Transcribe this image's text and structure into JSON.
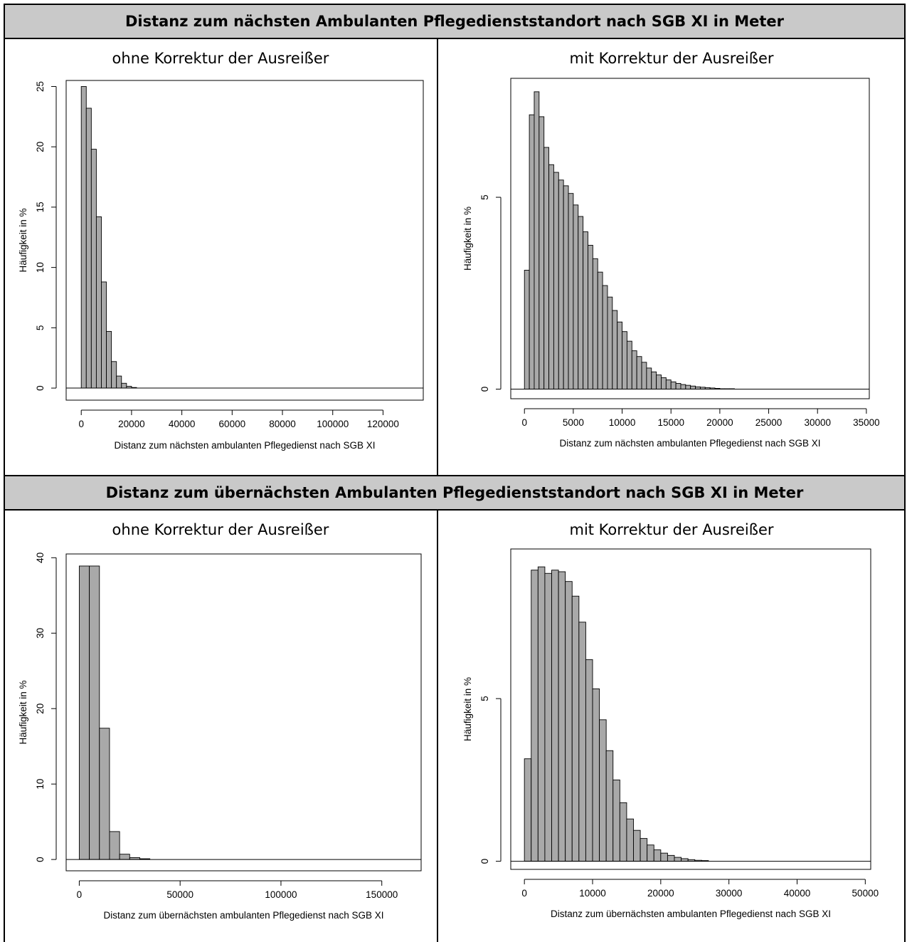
{
  "headers": {
    "top": "Distanz zum nächsten Ambulanten Pflegedienststandort nach SGB XI in Meter",
    "bottom": "Distanz zum übernächsten Ambulanten Pflegedienststandort nach SGB XI in Meter"
  },
  "colors": {
    "bar_fill": "#a9a9a9",
    "header_bg": "#c9c9c9"
  },
  "chart_data": [
    {
      "id": "tl",
      "type": "bar",
      "title": "ohne Korrektur der Ausreißer",
      "xlabel": "Distanz zum nächsten ambulanten Pflegedienst nach SGB XI",
      "ylabel": "Häufigkeit in %",
      "xlim": [
        -6000,
        136000
      ],
      "ylim": [
        -1,
        25.5
      ],
      "xticks": [
        0,
        20000,
        40000,
        60000,
        80000,
        100000,
        120000
      ],
      "xtick_labels": [
        "0",
        "20000",
        "40000",
        "60000",
        "80000",
        "100000",
        "120000"
      ],
      "yticks": [
        0,
        5,
        10,
        15,
        20,
        25
      ],
      "ytick_labels": [
        "0",
        "5",
        "10",
        "15",
        "20",
        "25"
      ],
      "bin_start": 0,
      "bin_width": 2000,
      "values": [
        25.0,
        23.2,
        19.8,
        14.2,
        8.8,
        4.7,
        2.2,
        1.0,
        0.4,
        0.15,
        0.05
      ]
    },
    {
      "id": "tr",
      "type": "bar",
      "title": "mit Korrektur der Ausreißer",
      "xlabel": "Distanz zum nächsten ambulanten Pflegedienst nach SGB XI",
      "ylabel": "Häufigkeit in %",
      "xlim": [
        -1400,
        35300
      ],
      "ylim": [
        -0.25,
        8.1
      ],
      "xticks": [
        0,
        5000,
        10000,
        15000,
        20000,
        25000,
        30000,
        35000
      ],
      "xtick_labels": [
        "0",
        "5000",
        "10000",
        "15000",
        "20000",
        "25000",
        "30000",
        "35000"
      ],
      "yticks": [
        0,
        5
      ],
      "ytick_labels": [
        "0",
        "5"
      ],
      "bin_start": 0,
      "bin_width": 500,
      "values": [
        3.1,
        7.15,
        7.75,
        7.1,
        6.3,
        5.85,
        5.65,
        5.45,
        5.3,
        5.1,
        4.8,
        4.5,
        4.1,
        3.75,
        3.4,
        3.05,
        2.7,
        2.4,
        2.05,
        1.75,
        1.5,
        1.25,
        1.0,
        0.85,
        0.7,
        0.55,
        0.45,
        0.37,
        0.3,
        0.24,
        0.19,
        0.15,
        0.12,
        0.1,
        0.08,
        0.06,
        0.05,
        0.04,
        0.03,
        0.02,
        0.01,
        0.01,
        0.01
      ]
    },
    {
      "id": "bl",
      "type": "bar",
      "title": "ohne Korrektur der Ausreißer",
      "xlabel": "Distanz zum übernächsten ambulanten Pflegedienst nach SGB XI",
      "ylabel": "Häufigkeit in %",
      "xlim": [
        -6500,
        169500
      ],
      "ylim": [
        -1.5,
        40.5
      ],
      "xticks": [
        0,
        50000,
        100000,
        150000
      ],
      "xtick_labels": [
        "0",
        "50000",
        "100000",
        "150000"
      ],
      "yticks": [
        0,
        10,
        20,
        30,
        40
      ],
      "ytick_labels": [
        "0",
        "10",
        "20",
        "30",
        "40"
      ],
      "bin_start": 0,
      "bin_width": 5000,
      "values": [
        38.9,
        38.9,
        17.4,
        3.7,
        0.7,
        0.25,
        0.1
      ]
    },
    {
      "id": "br",
      "type": "bar",
      "title": "mit Korrektur der Ausreißer",
      "xlabel": "Distanz zum übernächsten ambulanten Pflegedienst nach SGB XI",
      "ylabel": "Häufigkeit in %",
      "xlim": [
        -2000,
        50800
      ],
      "ylim": [
        -0.25,
        9.6
      ],
      "xticks": [
        0,
        10000,
        20000,
        30000,
        40000,
        50000
      ],
      "xtick_labels": [
        "0",
        "10000",
        "20000",
        "30000",
        "40000",
        "50000"
      ],
      "yticks": [
        0,
        5
      ],
      "ytick_labels": [
        "0",
        "5"
      ],
      "bin_start": 0,
      "bin_width": 1000,
      "values": [
        3.15,
        8.95,
        9.05,
        8.85,
        8.95,
        8.9,
        8.6,
        8.15,
        7.35,
        6.2,
        5.3,
        4.35,
        3.4,
        2.5,
        1.8,
        1.3,
        0.95,
        0.7,
        0.5,
        0.35,
        0.25,
        0.18,
        0.12,
        0.08,
        0.05,
        0.03,
        0.02
      ]
    }
  ]
}
